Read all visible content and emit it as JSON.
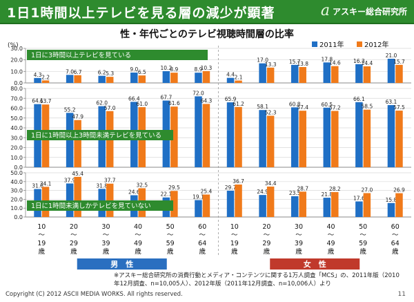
{
  "header": {
    "title": "1日1時間以上テレビを見る層の減少が顕著",
    "brand_logo": "a",
    "brand_name": "アスキー総合研究所"
  },
  "chart_data": {
    "type": "bar",
    "title": "性・年代ごとのテレビ視聴時間層の比率",
    "ylabel": "(%)",
    "categories": [
      "10〜19歳",
      "20〜29歳",
      "30〜39歳",
      "40〜49歳",
      "50〜59歳",
      "60〜64歳",
      "10〜19歳",
      "20〜29歳",
      "30〜39歳",
      "40〜49歳",
      "50〜59歳",
      "60〜64歳"
    ],
    "category_lines": [
      [
        "10",
        "〜",
        "19",
        "歳"
      ],
      [
        "20",
        "〜",
        "29",
        "歳"
      ],
      [
        "30",
        "〜",
        "39",
        "歳"
      ],
      [
        "40",
        "〜",
        "49",
        "歳"
      ],
      [
        "50",
        "〜",
        "59",
        "歳"
      ],
      [
        "60",
        "〜",
        "64",
        "歳"
      ],
      [
        "10",
        "〜",
        "19",
        "歳"
      ],
      [
        "20",
        "〜",
        "29",
        "歳"
      ],
      [
        "30",
        "〜",
        "39",
        "歳"
      ],
      [
        "40",
        "〜",
        "49",
        "歳"
      ],
      [
        "50",
        "〜",
        "59",
        "歳"
      ],
      [
        "60",
        "〜",
        "64",
        "歳"
      ]
    ],
    "groups": [
      "男　性",
      "女　性"
    ],
    "legend": [
      "2011年",
      "2012年"
    ],
    "legend_position": "top-right",
    "colors": {
      "2011": "#1f6fc5",
      "2012": "#f07a1a",
      "panel_label": "#2e8b2e",
      "male": "#2a6fc0",
      "female": "#c0392b"
    },
    "panels": [
      {
        "label": "1日に3時間以上テレビを見ている",
        "ylim": [
          0,
          30
        ],
        "ticks": [
          "0.0",
          "10.0",
          "20.0",
          "30.0"
        ],
        "series": [
          {
            "name": "2011年",
            "values": [
              4.3,
              7.0,
              6.2,
              9.0,
              10.2,
              8.9,
              4.4,
              17.0,
              15.7,
              17.8,
              16.3,
              21.0
            ]
          },
          {
            "name": "2012年",
            "values": [
              2.2,
              6.7,
              5.3,
              6.5,
              8.9,
              10.3,
              2.1,
              13.3,
              13.8,
              14.6,
              14.4,
              15.7
            ]
          }
        ]
      },
      {
        "label": "1日に1時間以上3時間未満テレビを見ている",
        "ylim": [
          0,
          80
        ],
        "ticks": [
          "0.0",
          "10.0",
          "20.0",
          "30.0",
          "40.0",
          "50.0",
          "60.0",
          "70.0",
          "80.0"
        ],
        "series": [
          {
            "name": "2011年",
            "values": [
              64.1,
              55.2,
              62.0,
              66.4,
              67.7,
              72.0,
              65.9,
              58.1,
              60.8,
              60.5,
              66.1,
              63.1
            ]
          },
          {
            "name": "2012年",
            "values": [
              63.7,
              47.9,
              57.0,
              61.0,
              61.6,
              64.3,
              61.2,
              52.3,
              57.4,
              57.2,
              58.5,
              57.5
            ]
          }
        ]
      },
      {
        "label": "1日に1時間未満しかテレビを見ていない",
        "ylim": [
          0,
          50
        ],
        "ticks": [
          "0.0",
          "10.0",
          "20.0",
          "30.0",
          "40.0",
          "50.0"
        ],
        "series": [
          {
            "name": "2011年",
            "values": [
              31.6,
              37.9,
              31.8,
              24.6,
              22.1,
              19.1,
              29.7,
              24.9,
              23.5,
              21.8,
              17.6,
              15.8
            ]
          },
          {
            "name": "2012年",
            "values": [
              34.1,
              45.4,
              37.7,
              32.5,
              29.5,
              25.4,
              36.7,
              34.4,
              28.7,
              28.2,
              27.0,
              26.9
            ]
          }
        ]
      }
    ]
  },
  "note": "※アスキー総合研究所の消費行動とメディア・コンテンツに関する1万人調査「MCS」の、2011年版（2010年12月調査、n=10,005人）、2012年版（2011年12月調査、n=10,006人）より",
  "footer": {
    "copyright": "Copyright (C) 2012 ASCII MEDIA WORKS. All rights reserved.",
    "page": "11"
  }
}
